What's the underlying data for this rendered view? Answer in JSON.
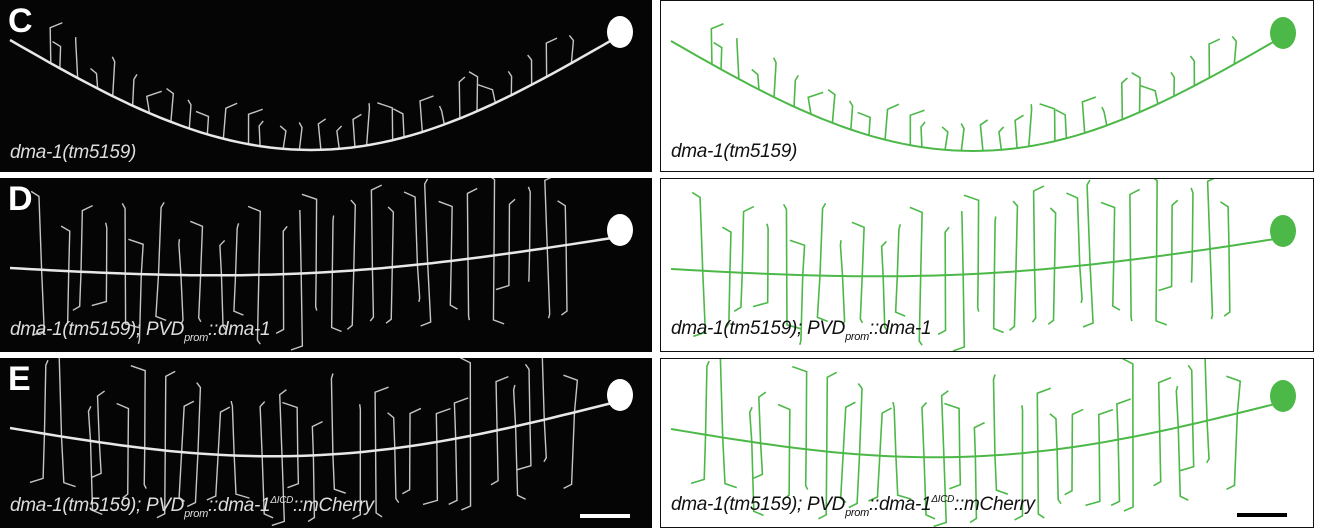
{
  "colors": {
    "trace_green": "#4cb848",
    "micro_bg": "#050505",
    "micro_signal": "#e8e8e8"
  },
  "rows": [
    {
      "letter": "C",
      "label_left": {
        "genotype": "dma-1(tm5159)"
      },
      "label_right": {
        "genotype": "dma-1(tm5159)"
      }
    },
    {
      "letter": "D",
      "label_left": {
        "genotype": "dma-1(tm5159); PVD",
        "sub": "prom",
        "rest": "::dma-1"
      },
      "label_right": {
        "genotype": "dma-1(tm5159); PVD",
        "sub": "prom",
        "rest": "::dma-1"
      }
    },
    {
      "letter": "E",
      "label_left": {
        "genotype": "dma-1(tm5159); PVD",
        "sub": "prom",
        "rest": "::dma-1",
        "sup": "ΔICD",
        "rest2": "::mCherry"
      },
      "label_right": {
        "genotype": "dma-1(tm5159); PVD",
        "sub": "prom",
        "rest": "::dma-1",
        "sup": "ΔICD",
        "rest2": "::mCherry"
      }
    }
  ],
  "scale_bar": {
    "shown": true
  }
}
